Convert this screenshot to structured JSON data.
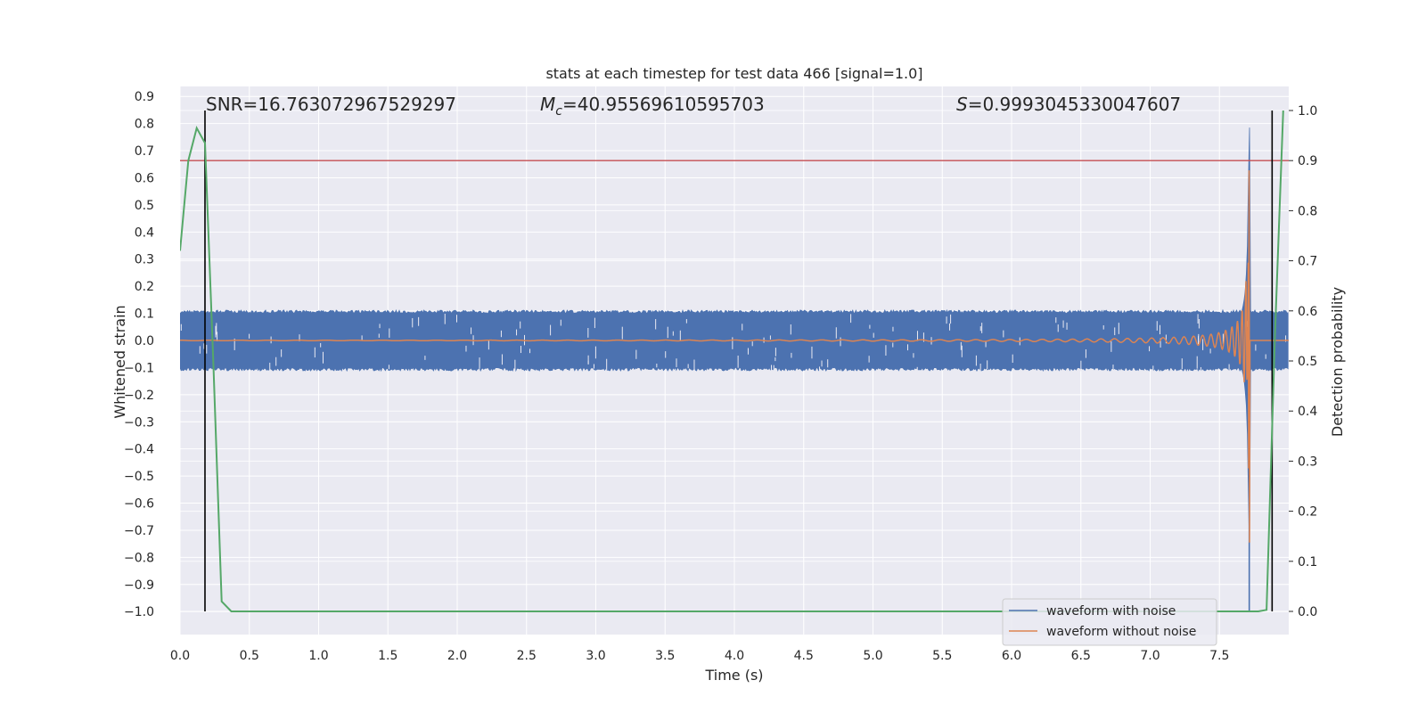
{
  "chart_data": {
    "type": "line",
    "title": "stats at each timestep for test data 466 [signal=1.0]",
    "xlabel": "Time (s)",
    "ylabel": "Whitened strain",
    "y2label": "Detection probability",
    "xlim": [
      0.0,
      8.0
    ],
    "ylim": [
      -1.09,
      0.93
    ],
    "y2lim": [
      0.0,
      1.0
    ],
    "xticks": [
      "0.0",
      "0.5",
      "1.0",
      "1.5",
      "2.0",
      "2.5",
      "3.0",
      "3.5",
      "4.0",
      "4.5",
      "5.0",
      "5.5",
      "6.0",
      "6.5",
      "7.0",
      "7.5"
    ],
    "yticks": [
      "0.9",
      "0.8",
      "0.7",
      "0.6",
      "0.5",
      "0.4",
      "0.3",
      "0.2",
      "0.1",
      "0.0",
      "−0.1",
      "−0.2",
      "−0.3",
      "−0.4",
      "−0.5",
      "−0.6",
      "−0.7",
      "−0.8",
      "−0.9",
      "−1.0"
    ],
    "y2ticks": [
      "1.0",
      "0.9",
      "0.8",
      "0.7",
      "0.6",
      "0.5",
      "0.4",
      "0.3",
      "0.2",
      "0.1",
      "0.0"
    ],
    "annotations": {
      "snr": "SNR=16.763072967529297",
      "mc_symbol": "M",
      "mc_sub": "c",
      "mc_value": "=40.95569610595703",
      "s_symbol": "S",
      "s_value": "=0.9993045330047607"
    },
    "threshold_probability": 0.9,
    "vertical_markers": [
      0.18,
      7.88
    ],
    "series": [
      {
        "name": "waveform with noise",
        "color": "#4c72b0",
        "noise_band": [
          -0.1,
          0.1
        ],
        "chirp_end_time": 7.72,
        "chirp_peak": 0.83,
        "min": -1.0
      },
      {
        "name": "waveform without noise",
        "color": "#dd8452",
        "chirp_end_time": 7.72,
        "chirp_peak": 0.84,
        "chirp_trough": -0.78
      },
      {
        "name": "",
        "color": "#55a868",
        "axis": "right",
        "x": [
          0.0,
          0.06,
          0.12,
          0.18,
          0.24,
          0.3,
          0.37,
          7.78,
          7.84,
          7.9,
          7.96
        ],
        "y": [
          0.72,
          0.9,
          0.965,
          0.935,
          0.5,
          0.02,
          0.0,
          0.0,
          0.003,
          0.55,
          1.0
        ]
      }
    ],
    "threshold_color": "#c44e52",
    "legend_placement": "lower-right",
    "grid": true
  }
}
